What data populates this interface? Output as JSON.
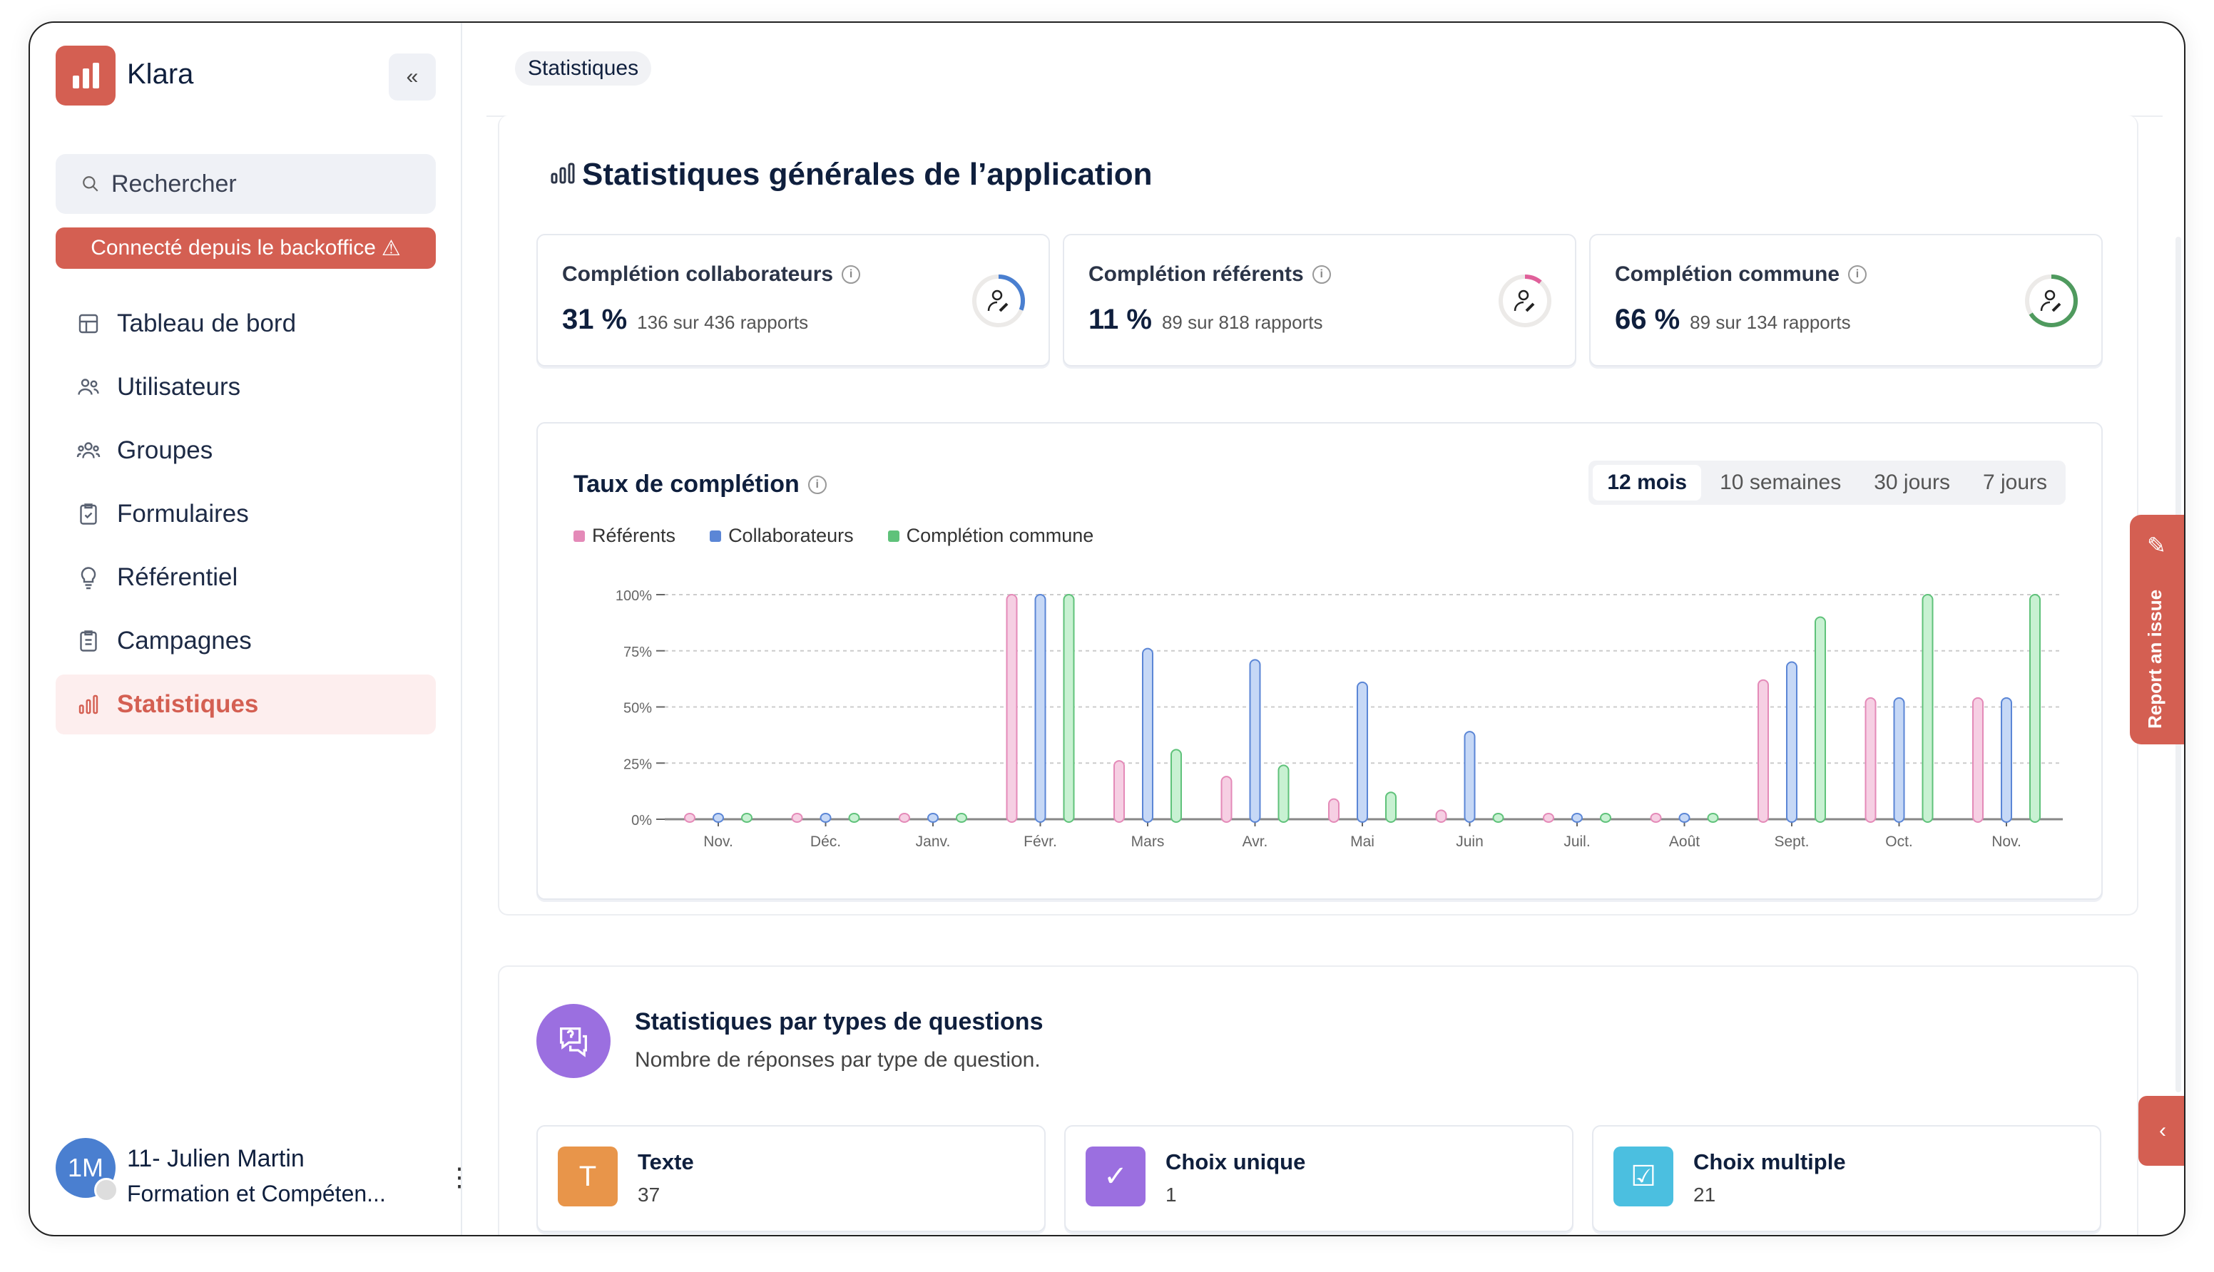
{
  "app": {
    "name": "Klara",
    "collapse_icon": "chevrons-left-icon"
  },
  "search": {
    "placeholder": "Rechercher"
  },
  "banner": {
    "label": "Connecté depuis le backoffice",
    "icon": "warning-icon"
  },
  "nav": [
    {
      "label": "Tableau de bord",
      "icon": "dashboard-icon"
    },
    {
      "label": "Utilisateurs",
      "icon": "users-icon"
    },
    {
      "label": "Groupes",
      "icon": "groups-icon"
    },
    {
      "label": "Formulaires",
      "icon": "clipboard-icon"
    },
    {
      "label": "Référentiel",
      "icon": "lightbulb-icon"
    },
    {
      "label": "Campagnes",
      "icon": "list-icon"
    },
    {
      "label": "Statistiques",
      "icon": "bar-chart-icon",
      "active": true
    }
  ],
  "user": {
    "initials": "1M",
    "name": "11- Julien Martin",
    "org": "Formation et Compéten..."
  },
  "breadcrumb": "Statistiques",
  "general": {
    "title": "Statistiques générales de l’application",
    "cards": [
      {
        "title": "Complétion collaborateurs",
        "percent": "31 %",
        "detail": "136 sur 436 rapports",
        "value": 31,
        "color": "#4a7fd0"
      },
      {
        "title": "Complétion référents",
        "percent": "11 %",
        "detail": "89 sur 818 rapports",
        "value": 11,
        "color": "#e0609a"
      },
      {
        "title": "Complétion commune",
        "percent": "66 %",
        "detail": "89 sur 134 rapports",
        "value": 66,
        "color": "#4f9a5e"
      }
    ]
  },
  "completion": {
    "title": "Taux de complétion",
    "tabs": [
      "12 mois",
      "10 semaines",
      "30 jours",
      "7 jours"
    ],
    "active_tab": 0
  },
  "chart_data": {
    "type": "bar",
    "title": "Taux de complétion",
    "categories": [
      "Nov.",
      "Déc.",
      "Janv.",
      "Févr.",
      "Mars",
      "Avr.",
      "Mai",
      "Juin",
      "Juil.",
      "Août",
      "Sept.",
      "Oct.",
      "Nov."
    ],
    "series": [
      {
        "name": "Référents",
        "color": "#e48ab8",
        "fill": "#f6cfe3",
        "values": [
          0,
          0,
          0,
          100,
          26,
          19,
          9,
          4,
          0,
          0,
          62,
          54,
          54
        ]
      },
      {
        "name": "Collaborateurs",
        "color": "#5b86d6",
        "fill": "#c6d8f6",
        "values": [
          0,
          0,
          0,
          100,
          76,
          71,
          61,
          39,
          0,
          0,
          70,
          54,
          54
        ]
      },
      {
        "name": "Complétion commune",
        "color": "#5fc27a",
        "fill": "#c8f1d2",
        "values": [
          0,
          0,
          0,
          100,
          31,
          24,
          12,
          0,
          0,
          0,
          90,
          100,
          100
        ]
      }
    ],
    "yticks": [
      "0%",
      "25%",
      "50%",
      "75%",
      "100%"
    ],
    "ylim": [
      0,
      100
    ],
    "grid": true,
    "legend": "top-left"
  },
  "questions": {
    "title": "Statistiques par types de questions",
    "subtitle": "Nombre de réponses par type de question.",
    "types": [
      {
        "label": "Texte",
        "count": "37",
        "color": "#e8954a",
        "glyph": "T"
      },
      {
        "label": "Choix unique",
        "count": "1",
        "color": "#9b6fe0",
        "glyph": "✓"
      },
      {
        "label": "Choix multiple",
        "count": "21",
        "color": "#4bbfe0",
        "glyph": "☑"
      }
    ]
  },
  "report": {
    "label": "Report an issue"
  }
}
